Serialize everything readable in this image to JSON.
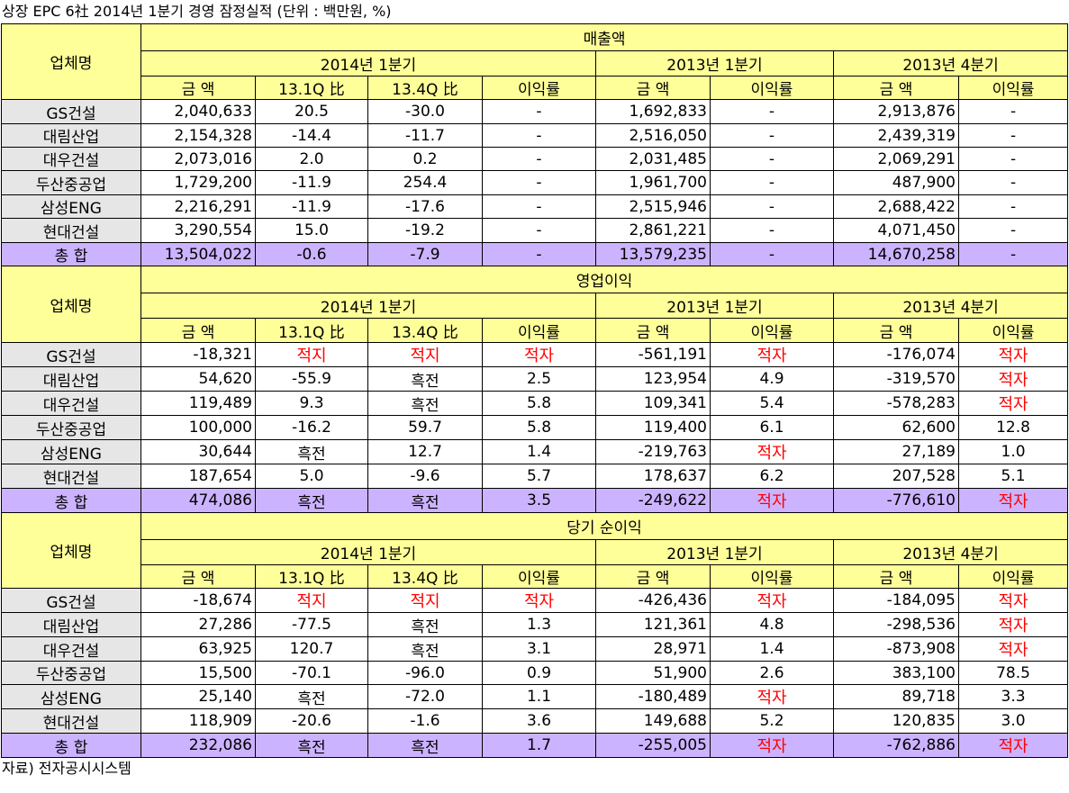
{
  "title": "상장 EPC 6社 2014년 1분기 경영 잠정실적 (단위 : 백만원, %)",
  "footer": "자료) 전자공시시스템",
  "headers": {
    "company": "업체명",
    "period_2014q1": "2014년 1분기",
    "period_2013q1": "2013년 1분기",
    "period_2013q4": "2013년 4분기",
    "amount": "금 액",
    "vs_13_1q": "13.1Q 比",
    "vs_13_4q": "13.4Q 比",
    "margin": "이익률"
  },
  "colors": {
    "header_bg": "#ffff99",
    "name_bg": "#e6e6e6",
    "total_bg": "#ccb3ff",
    "loss_text": "#ff0000"
  },
  "sections": [
    {
      "title": "매출액",
      "rows": [
        {
          "name": "GS건설",
          "c1": "2,040,633",
          "c2": "20.5",
          "c3": "-30.0",
          "c4": "-",
          "c5": "1,692,833",
          "c6": "-",
          "c7": "2,913,876",
          "c8": "-"
        },
        {
          "name": "대림산업",
          "c1": "2,154,328",
          "c2": "-14.4",
          "c3": "-11.7",
          "c4": "-",
          "c5": "2,516,050",
          "c6": "-",
          "c7": "2,439,319",
          "c8": "-"
        },
        {
          "name": "대우건설",
          "c1": "2,073,016",
          "c2": "2.0",
          "c3": "0.2",
          "c4": "-",
          "c5": "2,031,485",
          "c6": "-",
          "c7": "2,069,291",
          "c8": "-"
        },
        {
          "name": "두산중공업",
          "c1": "1,729,200",
          "c2": "-11.9",
          "c3": "254.4",
          "c4": "-",
          "c5": "1,961,700",
          "c6": "-",
          "c7": "487,900",
          "c8": "-"
        },
        {
          "name": "삼성ENG",
          "c1": "2,216,291",
          "c2": "-11.9",
          "c3": "-17.6",
          "c4": "-",
          "c5": "2,515,946",
          "c6": "-",
          "c7": "2,688,422",
          "c8": "-"
        },
        {
          "name": "현대건설",
          "c1": "3,290,554",
          "c2": "15.0",
          "c3": "-19.2",
          "c4": "-",
          "c5": "2,861,221",
          "c6": "-",
          "c7": "4,071,450",
          "c8": "-"
        }
      ],
      "total": {
        "name": "총 합",
        "c1": "13,504,022",
        "c2": "-0.6",
        "c3": "-7.9",
        "c4": "-",
        "c5": "13,579,235",
        "c6": "-",
        "c7": "14,670,258",
        "c8": "-"
      }
    },
    {
      "title": "영업이익",
      "rows": [
        {
          "name": "GS건설",
          "c1": "-18,321",
          "c2": "적지",
          "c3": "적지",
          "c4": "적자",
          "c5": "-561,191",
          "c6": "적자",
          "c7": "-176,074",
          "c8": "적자"
        },
        {
          "name": "대림산업",
          "c1": "54,620",
          "c2": "-55.9",
          "c3": "흑전",
          "c4": "2.5",
          "c5": "123,954",
          "c6": "4.9",
          "c7": "-319,570",
          "c8": "적자"
        },
        {
          "name": "대우건설",
          "c1": "119,489",
          "c2": "9.3",
          "c3": "흑전",
          "c4": "5.8",
          "c5": "109,341",
          "c6": "5.4",
          "c7": "-578,283",
          "c8": "적자"
        },
        {
          "name": "두산중공업",
          "c1": "100,000",
          "c2": "-16.2",
          "c3": "59.7",
          "c4": "5.8",
          "c5": "119,400",
          "c6": "6.1",
          "c7": "62,600",
          "c8": "12.8"
        },
        {
          "name": "삼성ENG",
          "c1": "30,644",
          "c2": "흑전",
          "c3": "12.7",
          "c4": "1.4",
          "c5": "-219,763",
          "c6": "적자",
          "c7": "27,189",
          "c8": "1.0"
        },
        {
          "name": "현대건설",
          "c1": "187,654",
          "c2": "5.0",
          "c3": "-9.6",
          "c4": "5.7",
          "c5": "178,637",
          "c6": "6.2",
          "c7": "207,528",
          "c8": "5.1"
        }
      ],
      "total": {
        "name": "총 합",
        "c1": "474,086",
        "c2": "흑전",
        "c3": "흑전",
        "c4": "3.5",
        "c5": "-249,622",
        "c6": "적자",
        "c7": "-776,610",
        "c8": "적자"
      }
    },
    {
      "title": "당기 순이익",
      "rows": [
        {
          "name": "GS건설",
          "c1": "-18,674",
          "c2": "적지",
          "c3": "적지",
          "c4": "적자",
          "c5": "-426,436",
          "c6": "적자",
          "c7": "-184,095",
          "c8": "적자"
        },
        {
          "name": "대림산업",
          "c1": "27,286",
          "c2": "-77.5",
          "c3": "흑전",
          "c4": "1.3",
          "c5": "121,361",
          "c6": "4.8",
          "c7": "-298,536",
          "c8": "적자"
        },
        {
          "name": "대우건설",
          "c1": "63,925",
          "c2": "120.7",
          "c3": "흑전",
          "c4": "3.1",
          "c5": "28,971",
          "c6": "1.4",
          "c7": "-873,908",
          "c8": "적자"
        },
        {
          "name": "두산중공업",
          "c1": "15,500",
          "c2": "-70.1",
          "c3": "-96.0",
          "c4": "0.9",
          "c5": "51,900",
          "c6": "2.6",
          "c7": "383,100",
          "c8": "78.5"
        },
        {
          "name": "삼성ENG",
          "c1": "25,140",
          "c2": "흑전",
          "c3": "-72.0",
          "c4": "1.1",
          "c5": "-180,489",
          "c6": "적자",
          "c7": "89,718",
          "c8": "3.3"
        },
        {
          "name": "현대건설",
          "c1": "118,909",
          "c2": "-20.6",
          "c3": "-1.6",
          "c4": "3.6",
          "c5": "149,688",
          "c6": "5.2",
          "c7": "120,835",
          "c8": "3.0"
        }
      ],
      "total": {
        "name": "총 합",
        "c1": "232,086",
        "c2": "흑전",
        "c3": "흑전",
        "c4": "1.7",
        "c5": "-255,005",
        "c6": "적자",
        "c7": "-762,886",
        "c8": "적자"
      }
    }
  ]
}
